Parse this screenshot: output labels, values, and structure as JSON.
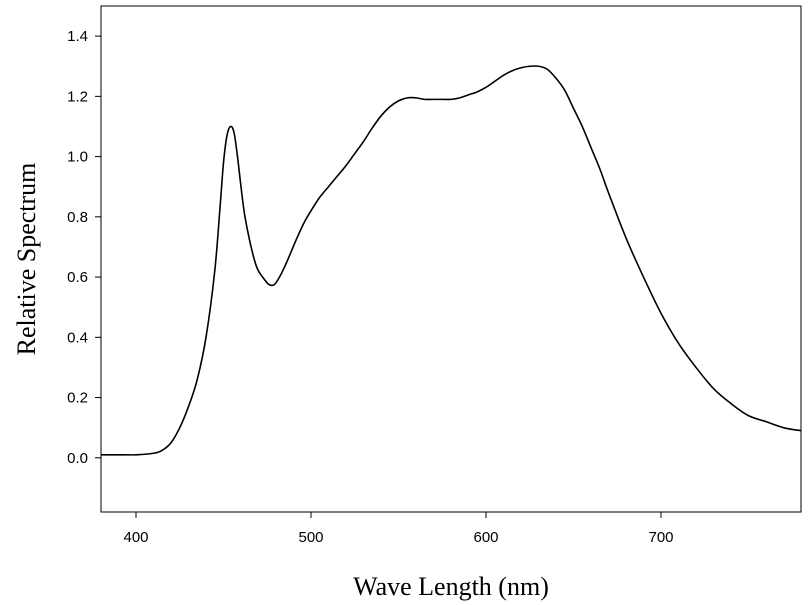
{
  "chart_data": {
    "type": "line",
    "title": "",
    "xlabel": "Wave Length (nm)",
    "ylabel": "Relative Spectrum",
    "xlim": [
      380,
      780
    ],
    "ylim": [
      -0.18,
      1.5
    ],
    "xticks": [
      400,
      500,
      600,
      700
    ],
    "yticks": [
      0.0,
      0.2,
      0.4,
      0.6,
      0.8,
      1.0,
      1.2,
      1.4
    ],
    "xtick_labels": [
      "400",
      "500",
      "600",
      "700"
    ],
    "ytick_labels": [
      "0.0",
      "0.2",
      "0.4",
      "0.6",
      "0.8",
      "1.0",
      "1.2",
      "1.4"
    ],
    "grid": false,
    "legend": "none",
    "series": [
      {
        "color": "#000000",
        "x": [
          380,
          390,
          400,
          410,
          415,
          420,
          425,
          430,
          435,
          440,
          445,
          448,
          450,
          452,
          454,
          456,
          458,
          460,
          462,
          465,
          468,
          470,
          473,
          476,
          479,
          482,
          485,
          488,
          492,
          496,
          500,
          505,
          510,
          515,
          520,
          525,
          530,
          535,
          540,
          545,
          550,
          555,
          560,
          565,
          570,
          575,
          580,
          585,
          590,
          595,
          600,
          605,
          610,
          615,
          620,
          625,
          630,
          635,
          640,
          645,
          650,
          655,
          660,
          665,
          670,
          680,
          690,
          700,
          710,
          720,
          730,
          740,
          750,
          760,
          770,
          780
        ],
        "y": [
          0.01,
          0.01,
          0.01,
          0.015,
          0.025,
          0.05,
          0.1,
          0.17,
          0.26,
          0.4,
          0.62,
          0.83,
          0.98,
          1.07,
          1.1,
          1.08,
          1.0,
          0.9,
          0.81,
          0.72,
          0.65,
          0.62,
          0.595,
          0.575,
          0.575,
          0.6,
          0.635,
          0.675,
          0.73,
          0.78,
          0.82,
          0.865,
          0.9,
          0.935,
          0.97,
          1.01,
          1.05,
          1.095,
          1.135,
          1.165,
          1.185,
          1.195,
          1.195,
          1.19,
          1.19,
          1.19,
          1.19,
          1.195,
          1.205,
          1.215,
          1.23,
          1.25,
          1.27,
          1.285,
          1.295,
          1.3,
          1.3,
          1.29,
          1.26,
          1.22,
          1.16,
          1.1,
          1.03,
          0.96,
          0.88,
          0.73,
          0.6,
          0.48,
          0.38,
          0.3,
          0.23,
          0.18,
          0.14,
          0.12,
          0.1,
          0.09
        ]
      }
    ]
  }
}
